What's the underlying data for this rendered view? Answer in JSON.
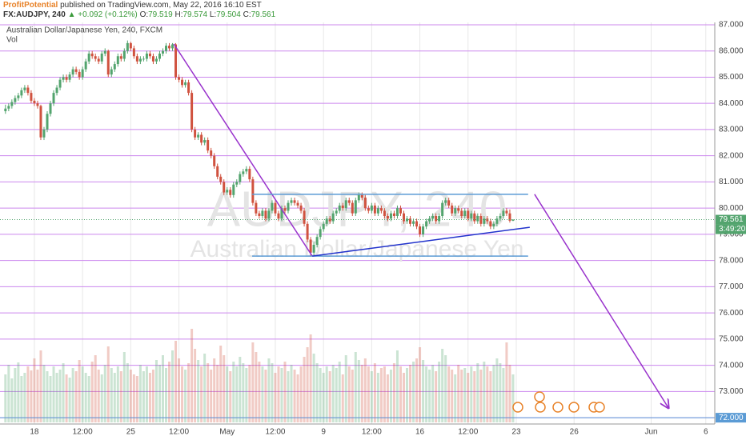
{
  "header": {
    "publisher": "ProfitPotential",
    "published": "published on TradingView.com, May 22, 2016 16:10 EST",
    "symbol": "FX:AUDJPY, 240",
    "change": "▲ +0.092 (+0.12%)",
    "ohlc_labels": [
      "O:",
      "H:",
      "L:",
      "C:"
    ]
  },
  "chart_data": {
    "type": "candlestick",
    "legend_title": "Australian Dollar/Japanese Yen, 240, FXCM",
    "volume_title": "Vol",
    "watermark": {
      "symbol": "AUDJPY, 240",
      "description": "Australian Dollar/Japanese Yen"
    },
    "up_color": "#53a46e",
    "down_color": "#d0523f",
    "grid_color": "#cc88ee",
    "vgrid_color": "#e8e8e8",
    "ylim": [
      71.76,
      87.09
    ],
    "yticks": [
      {
        "value": 72,
        "label": "72.000"
      },
      {
        "value": 73,
        "label": "73.000"
      },
      {
        "value": 74,
        "label": "74.000"
      },
      {
        "value": 75,
        "label": "75.000"
      },
      {
        "value": 76,
        "label": "76.000"
      },
      {
        "value": 77,
        "label": "77.000"
      },
      {
        "value": 78,
        "label": "78.000"
      },
      {
        "value": 79,
        "label": "79.000"
      },
      {
        "value": 80,
        "label": "80.000"
      },
      {
        "value": 81,
        "label": "81.000"
      },
      {
        "value": 82,
        "label": "82.000"
      },
      {
        "value": 83,
        "label": "83.000"
      },
      {
        "value": 84,
        "label": "84.000"
      },
      {
        "value": 85,
        "label": "85.000"
      },
      {
        "value": 86,
        "label": "86.000"
      },
      {
        "value": 87,
        "label": "87.000"
      }
    ],
    "xlim": [
      -1.7,
      220.8
    ],
    "xticks": [
      {
        "value": 9,
        "label": "18"
      },
      {
        "value": 24,
        "label": "12:00"
      },
      {
        "value": 39,
        "label": "25"
      },
      {
        "value": 54,
        "label": "12:00"
      },
      {
        "value": 69,
        "label": "May"
      },
      {
        "value": 84,
        "label": "12:00"
      },
      {
        "value": 99,
        "label": "9"
      },
      {
        "value": 114,
        "label": "12:00"
      },
      {
        "value": 129,
        "label": "16"
      },
      {
        "value": 144,
        "label": "12:00"
      },
      {
        "value": 159,
        "label": "23"
      },
      {
        "value": 177,
        "label": "26"
      },
      {
        "value": 201,
        "label": "Jun"
      },
      {
        "value": 218,
        "label": "6"
      }
    ],
    "candles": [
      [
        83.7,
        83.95,
        83.6,
        83.8
      ],
      [
        83.8,
        84.0,
        83.7,
        83.9
      ],
      [
        83.9,
        84.15,
        83.8,
        84.05
      ],
      [
        84.05,
        84.3,
        83.95,
        84.2
      ],
      [
        84.2,
        84.4,
        84.1,
        84.3
      ],
      [
        84.3,
        84.6,
        84.2,
        84.5
      ],
      [
        84.5,
        84.7,
        84.4,
        84.6
      ],
      [
        84.6,
        84.7,
        84.3,
        84.4
      ],
      [
        84.4,
        84.5,
        84.0,
        84.1
      ],
      [
        84.1,
        84.2,
        83.9,
        84.0
      ],
      [
        84.0,
        84.1,
        83.8,
        83.9
      ],
      [
        83.9,
        83.95,
        82.6,
        82.7
      ],
      [
        82.7,
        83.1,
        82.6,
        83.0
      ],
      [
        83.0,
        83.7,
        82.9,
        83.6
      ],
      [
        83.6,
        84.1,
        83.5,
        84.0
      ],
      [
        84.0,
        84.5,
        83.9,
        84.4
      ],
      [
        84.4,
        84.7,
        84.3,
        84.6
      ],
      [
        84.6,
        85.0,
        84.5,
        84.9
      ],
      [
        84.9,
        85.1,
        84.8,
        85.0
      ],
      [
        85.0,
        85.1,
        84.8,
        84.9
      ],
      [
        84.9,
        85.2,
        84.8,
        85.1
      ],
      [
        85.1,
        85.4,
        85.0,
        85.3
      ],
      [
        85.3,
        85.4,
        85.1,
        85.2
      ],
      [
        85.2,
        85.3,
        84.9,
        85.0
      ],
      [
        85.0,
        85.4,
        84.9,
        85.3
      ],
      [
        85.3,
        85.7,
        85.2,
        85.6
      ],
      [
        85.6,
        86.0,
        85.5,
        85.9
      ],
      [
        85.9,
        86.0,
        85.7,
        85.8
      ],
      [
        85.8,
        85.9,
        85.6,
        85.7
      ],
      [
        85.7,
        85.8,
        85.5,
        85.6
      ],
      [
        85.6,
        86.0,
        85.5,
        85.9
      ],
      [
        85.9,
        86.1,
        85.8,
        86.0
      ],
      [
        86.0,
        86.05,
        85.0,
        85.1
      ],
      [
        85.1,
        85.4,
        85.0,
        85.3
      ],
      [
        85.3,
        85.6,
        85.2,
        85.5
      ],
      [
        85.5,
        85.9,
        85.4,
        85.8
      ],
      [
        85.8,
        85.9,
        85.6,
        85.7
      ],
      [
        85.7,
        86.1,
        85.6,
        86.0
      ],
      [
        86.0,
        86.4,
        85.9,
        86.3
      ],
      [
        86.3,
        86.35,
        86.0,
        86.1
      ],
      [
        86.1,
        86.2,
        85.7,
        85.8
      ],
      [
        85.8,
        85.9,
        85.5,
        85.6
      ],
      [
        85.6,
        85.8,
        85.5,
        85.7
      ],
      [
        85.7,
        85.8,
        85.6,
        85.7
      ],
      [
        85.7,
        86.0,
        85.6,
        85.9
      ],
      [
        85.9,
        86.0,
        85.7,
        85.8
      ],
      [
        85.8,
        85.9,
        85.5,
        85.6
      ],
      [
        85.6,
        85.8,
        85.5,
        85.7
      ],
      [
        85.7,
        86.0,
        85.6,
        85.9
      ],
      [
        85.9,
        86.1,
        85.8,
        86.0
      ],
      [
        86.0,
        86.3,
        85.9,
        86.2
      ],
      [
        86.2,
        86.3,
        86.0,
        86.1
      ],
      [
        86.1,
        86.3,
        86.0,
        86.25
      ],
      [
        86.25,
        86.3,
        84.9,
        85.0
      ],
      [
        85.0,
        85.1,
        84.8,
        84.9
      ],
      [
        84.9,
        85.0,
        84.6,
        84.7
      ],
      [
        84.7,
        84.9,
        84.6,
        84.8
      ],
      [
        84.8,
        84.9,
        84.3,
        84.4
      ],
      [
        84.4,
        84.5,
        82.9,
        83.0
      ],
      [
        83.0,
        83.1,
        82.6,
        82.7
      ],
      [
        82.7,
        82.9,
        82.6,
        82.8
      ],
      [
        82.8,
        82.9,
        82.4,
        82.5
      ],
      [
        82.5,
        82.7,
        82.4,
        82.6
      ],
      [
        82.6,
        82.7,
        82.1,
        82.2
      ],
      [
        82.2,
        82.3,
        81.9,
        82.0
      ],
      [
        82.0,
        82.1,
        81.5,
        81.6
      ],
      [
        81.6,
        81.7,
        81.1,
        81.2
      ],
      [
        81.2,
        81.3,
        80.9,
        81.0
      ],
      [
        81.0,
        81.1,
        80.5,
        80.6
      ],
      [
        80.6,
        80.8,
        80.5,
        80.7
      ],
      [
        80.7,
        80.8,
        80.4,
        80.5
      ],
      [
        80.5,
        81.0,
        80.4,
        80.9
      ],
      [
        80.9,
        81.1,
        80.8,
        81.0
      ],
      [
        81.0,
        81.4,
        80.9,
        81.3
      ],
      [
        81.3,
        81.5,
        81.2,
        81.4
      ],
      [
        81.4,
        81.6,
        81.3,
        81.5
      ],
      [
        81.5,
        81.6,
        81.0,
        81.1
      ],
      [
        81.1,
        81.2,
        80.1,
        80.2
      ],
      [
        80.2,
        80.3,
        79.7,
        79.8
      ],
      [
        79.8,
        79.9,
        79.6,
        79.7
      ],
      [
        79.7,
        80.0,
        79.6,
        79.9
      ],
      [
        79.9,
        80.0,
        79.5,
        79.6
      ],
      [
        79.6,
        80.0,
        79.5,
        79.9
      ],
      [
        79.9,
        80.3,
        79.8,
        80.2
      ],
      [
        80.2,
        80.3,
        79.7,
        79.8
      ],
      [
        79.8,
        79.9,
        79.5,
        79.6
      ],
      [
        79.6,
        80.1,
        79.5,
        80.0
      ],
      [
        80.0,
        80.1,
        79.8,
        79.9
      ],
      [
        79.9,
        80.3,
        79.8,
        80.2
      ],
      [
        80.2,
        80.4,
        80.1,
        80.3
      ],
      [
        80.3,
        80.4,
        80.1,
        80.2
      ],
      [
        80.2,
        80.3,
        80.0,
        80.1
      ],
      [
        80.1,
        80.2,
        79.8,
        79.9
      ],
      [
        79.9,
        80.0,
        79.3,
        79.4
      ],
      [
        79.4,
        79.5,
        78.7,
        78.8
      ],
      [
        78.8,
        78.9,
        78.15,
        78.3
      ],
      [
        78.3,
        78.7,
        78.2,
        78.6
      ],
      [
        78.6,
        79.0,
        78.5,
        78.9
      ],
      [
        78.9,
        79.3,
        78.8,
        79.2
      ],
      [
        79.2,
        79.5,
        79.1,
        79.4
      ],
      [
        79.4,
        79.7,
        79.3,
        79.6
      ],
      [
        79.6,
        79.7,
        79.4,
        79.5
      ],
      [
        79.5,
        79.9,
        79.4,
        79.8
      ],
      [
        79.8,
        80.0,
        79.7,
        79.9
      ],
      [
        79.9,
        80.2,
        79.8,
        80.1
      ],
      [
        80.1,
        80.2,
        79.9,
        80.0
      ],
      [
        80.0,
        80.4,
        79.9,
        80.3
      ],
      [
        80.3,
        80.4,
        80.1,
        80.2
      ],
      [
        80.2,
        80.3,
        79.7,
        79.8
      ],
      [
        79.8,
        80.4,
        79.7,
        80.3
      ],
      [
        80.3,
        80.6,
        80.2,
        80.5
      ],
      [
        80.5,
        80.6,
        80.3,
        80.4
      ],
      [
        80.4,
        80.5,
        79.9,
        80.0
      ],
      [
        80.0,
        80.1,
        79.8,
        79.9
      ],
      [
        79.9,
        80.2,
        79.8,
        80.1
      ],
      [
        80.1,
        80.2,
        79.7,
        79.8
      ],
      [
        79.8,
        80.1,
        79.7,
        80.0
      ],
      [
        80.0,
        80.1,
        79.8,
        79.9
      ],
      [
        79.9,
        80.0,
        79.6,
        79.7
      ],
      [
        79.7,
        79.8,
        79.5,
        79.6
      ],
      [
        79.6,
        79.9,
        79.5,
        79.8
      ],
      [
        79.8,
        79.9,
        79.6,
        79.7
      ],
      [
        79.7,
        80.1,
        79.6,
        80.0
      ],
      [
        80.0,
        80.1,
        79.7,
        79.8
      ],
      [
        79.8,
        79.9,
        79.4,
        79.5
      ],
      [
        79.5,
        79.7,
        79.4,
        79.6
      ],
      [
        79.6,
        79.7,
        79.3,
        79.4
      ],
      [
        79.4,
        79.6,
        79.3,
        79.5
      ],
      [
        79.5,
        79.6,
        79.2,
        79.3
      ],
      [
        79.3,
        79.4,
        78.9,
        79.0
      ],
      [
        79.0,
        79.4,
        78.9,
        79.3
      ],
      [
        79.3,
        79.6,
        79.2,
        79.5
      ],
      [
        79.5,
        79.7,
        79.4,
        79.6
      ],
      [
        79.6,
        79.8,
        79.5,
        79.7
      ],
      [
        79.7,
        79.8,
        79.4,
        79.5
      ],
      [
        79.5,
        79.8,
        79.4,
        79.7
      ],
      [
        79.7,
        80.3,
        79.6,
        80.2
      ],
      [
        80.2,
        80.4,
        80.1,
        80.3
      ],
      [
        80.3,
        80.4,
        80.0,
        80.1
      ],
      [
        80.1,
        80.2,
        79.7,
        79.8
      ],
      [
        79.8,
        80.1,
        79.7,
        80.0
      ],
      [
        80.0,
        80.1,
        79.8,
        79.9
      ],
      [
        79.9,
        80.0,
        79.6,
        79.7
      ],
      [
        79.7,
        80.0,
        79.6,
        79.9
      ],
      [
        79.9,
        80.0,
        79.5,
        79.6
      ],
      [
        79.6,
        79.9,
        79.5,
        79.8
      ],
      [
        79.8,
        79.9,
        79.4,
        79.5
      ],
      [
        79.5,
        79.8,
        79.4,
        79.7
      ],
      [
        79.7,
        79.8,
        79.3,
        79.4
      ],
      [
        79.4,
        79.7,
        79.3,
        79.6
      ],
      [
        79.6,
        79.7,
        79.4,
        79.5
      ],
      [
        79.5,
        79.6,
        79.2,
        79.3
      ],
      [
        79.3,
        79.5,
        79.2,
        79.4
      ],
      [
        79.4,
        79.7,
        79.3,
        79.6
      ],
      [
        79.6,
        79.8,
        79.5,
        79.7
      ],
      [
        79.7,
        80.0,
        79.6,
        79.9
      ],
      [
        79.9,
        80.0,
        79.7,
        79.8
      ],
      [
        79.8,
        79.95,
        79.45,
        79.52
      ],
      [
        79.519,
        79.574,
        79.504,
        79.561
      ]
    ],
    "volume": [
      60,
      72,
      55,
      68,
      75,
      58,
      62,
      70,
      65,
      80,
      66,
      90,
      72,
      64,
      58,
      70,
      62,
      66,
      74,
      60,
      56,
      68,
      64,
      78,
      70,
      62,
      58,
      76,
      84,
      66,
      60,
      72,
      95,
      68,
      62,
      70,
      64,
      88,
      74,
      66,
      60,
      58,
      72,
      64,
      70,
      62,
      66,
      78,
      72,
      84,
      68,
      76,
      90,
      102,
      80,
      70,
      66,
      74,
      117,
      92,
      78,
      70,
      86,
      74,
      66,
      80,
      72,
      96,
      84,
      70,
      64,
      76,
      70,
      82,
      74,
      68,
      72,
      100,
      88,
      76,
      70,
      66,
      80,
      74,
      62,
      70,
      68,
      76,
      64,
      72,
      66,
      60,
      70,
      82,
      94,
      110,
      86,
      74,
      68,
      62,
      70,
      64,
      72,
      68,
      76,
      60,
      84,
      70,
      66,
      88,
      78,
      72,
      80,
      70,
      64,
      74,
      62,
      68,
      70,
      60,
      66,
      74,
      90,
      70,
      62,
      68,
      72,
      76,
      80,
      94,
      78,
      70,
      66,
      72,
      64,
      76,
      92,
      84,
      70,
      66,
      60,
      72,
      66,
      68,
      62,
      70,
      64,
      74,
      66,
      76,
      70,
      64,
      72,
      80,
      74,
      68,
      100,
      72,
      60
    ],
    "vlim": [
      0,
      130
    ],
    "countdown": "3:49:20",
    "crosshair": {
      "value": 72,
      "label": "72.000",
      "color": "#5b9bd5"
    },
    "drawings": [
      {
        "color": "#9933cc",
        "arrow": false,
        "points": [
          [
            52.4,
            86.27
          ],
          [
            95.5,
            78.17
          ]
        ]
      },
      {
        "color": "#9933cc",
        "arrow": true,
        "points": [
          [
            164.7,
            80.53
          ],
          [
            206.4,
            72.37
          ]
        ]
      },
      {
        "color": "#5b9bd5",
        "arrow": false,
        "points": [
          [
            76.8,
            80.53
          ],
          [
            162.7,
            80.53
          ]
        ]
      },
      {
        "color": "#5b9bd5",
        "arrow": false,
        "points": [
          [
            76.8,
            78.17
          ],
          [
            162.7,
            78.17
          ]
        ]
      },
      {
        "color": "#2233cc",
        "arrow": false,
        "points": [
          [
            95.5,
            78.17
          ],
          [
            163.2,
            79.27
          ]
        ]
      }
    ]
  }
}
